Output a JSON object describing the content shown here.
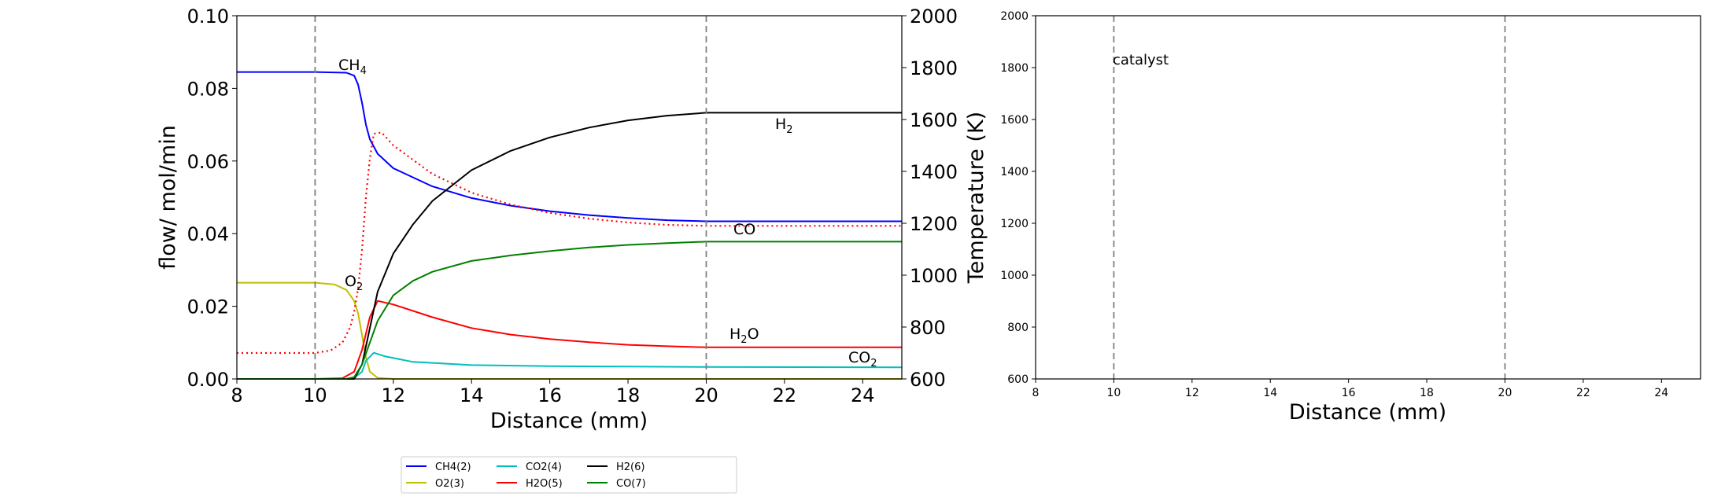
{
  "chart_data": [
    {
      "type": "line",
      "xlabel": "Distance (mm)",
      "ylabel": "flow/ mol/min",
      "y2label": "Temperature (K)",
      "xlim": [
        8,
        25
      ],
      "ylim": [
        0,
        0.1
      ],
      "y2lim": [
        600,
        2000
      ],
      "xticks": [
        8,
        10,
        12,
        14,
        16,
        18,
        20,
        22,
        24
      ],
      "yticks": [
        0.0,
        0.02,
        0.04,
        0.06,
        0.08,
        0.1
      ],
      "y2ticks": [
        600,
        800,
        1000,
        1200,
        1400,
        1600,
        1800,
        2000
      ],
      "catalyst_bounds": [
        10,
        20
      ],
      "legend_location": "below plots, centered",
      "series": [
        {
          "name": "CH4(2)",
          "color": "#0000ff",
          "label": "CH4",
          "points": [
            [
              8,
              0.0845
            ],
            [
              10,
              0.0845
            ],
            [
              10.8,
              0.0843
            ],
            [
              11.0,
              0.0835
            ],
            [
              11.1,
              0.081
            ],
            [
              11.2,
              0.076
            ],
            [
              11.3,
              0.07
            ],
            [
              11.4,
              0.066
            ],
            [
              11.6,
              0.062
            ],
            [
              12,
              0.058
            ],
            [
              13,
              0.053
            ],
            [
              14,
              0.0498
            ],
            [
              15,
              0.0477
            ],
            [
              16,
              0.0462
            ],
            [
              17,
              0.0451
            ],
            [
              18,
              0.0443
            ],
            [
              19,
              0.0437
            ],
            [
              20,
              0.0434
            ],
            [
              25,
              0.0434
            ]
          ]
        },
        {
          "name": "O2(3)",
          "color": "#bfbf00",
          "label": "O2",
          "points": [
            [
              8,
              0.0265
            ],
            [
              10,
              0.0265
            ],
            [
              10.5,
              0.026
            ],
            [
              10.8,
              0.0245
            ],
            [
              11.0,
              0.0215
            ],
            [
              11.1,
              0.018
            ],
            [
              11.2,
              0.012
            ],
            [
              11.3,
              0.006
            ],
            [
              11.4,
              0.002
            ],
            [
              11.6,
              0.0003
            ],
            [
              12,
              0.0
            ],
            [
              25,
              0.0
            ]
          ]
        },
        {
          "name": "CO2(4)",
          "color": "#00bfbf",
          "label": "CO2",
          "points": [
            [
              8,
              0.0
            ],
            [
              10.8,
              0.0
            ],
            [
              11.0,
              0.0003
            ],
            [
              11.2,
              0.002
            ],
            [
              11.3,
              0.005
            ],
            [
              11.5,
              0.0072
            ],
            [
              11.8,
              0.0062
            ],
            [
              12.5,
              0.0047
            ],
            [
              14,
              0.0038
            ],
            [
              16,
              0.0035
            ],
            [
              18,
              0.0034
            ],
            [
              20,
              0.0033
            ],
            [
              25,
              0.0032
            ]
          ]
        },
        {
          "name": "H2O(5)",
          "color": "#ff0000",
          "label": "H2O",
          "points": [
            [
              8,
              0.0
            ],
            [
              10,
              0.0
            ],
            [
              10.7,
              0.0002
            ],
            [
              11.0,
              0.002
            ],
            [
              11.2,
              0.008
            ],
            [
              11.4,
              0.017
            ],
            [
              11.6,
              0.0215
            ],
            [
              12.0,
              0.0205
            ],
            [
              13,
              0.017
            ],
            [
              14,
              0.014
            ],
            [
              15,
              0.0122
            ],
            [
              16,
              0.011
            ],
            [
              17,
              0.0101
            ],
            [
              18,
              0.0094
            ],
            [
              19,
              0.009
            ],
            [
              20,
              0.0087
            ],
            [
              25,
              0.0087
            ]
          ]
        },
        {
          "name": "H2(6)",
          "color": "#000000",
          "label": "H2",
          "points": [
            [
              8,
              0.0
            ],
            [
              11.0,
              0.0
            ],
            [
              11.2,
              0.004
            ],
            [
              11.4,
              0.014
            ],
            [
              11.6,
              0.024
            ],
            [
              12,
              0.0345
            ],
            [
              12.5,
              0.0425
            ],
            [
              13,
              0.049
            ],
            [
              14,
              0.0575
            ],
            [
              15,
              0.0628
            ],
            [
              16,
              0.0665
            ],
            [
              17,
              0.0692
            ],
            [
              18,
              0.0712
            ],
            [
              19,
              0.0725
            ],
            [
              20,
              0.0733
            ],
            [
              25,
              0.0733
            ]
          ]
        },
        {
          "name": "CO(7)",
          "color": "#008000",
          "label": "CO",
          "points": [
            [
              8,
              0.0
            ],
            [
              10.8,
              0.0
            ],
            [
              11.0,
              0.0005
            ],
            [
              11.2,
              0.004
            ],
            [
              11.4,
              0.01
            ],
            [
              11.6,
              0.016
            ],
            [
              12,
              0.023
            ],
            [
              12.5,
              0.027
            ],
            [
              13,
              0.0295
            ],
            [
              14,
              0.0325
            ],
            [
              15,
              0.034
            ],
            [
              16,
              0.0352
            ],
            [
              17,
              0.0362
            ],
            [
              18,
              0.0369
            ],
            [
              19,
              0.0374
            ],
            [
              20,
              0.0378
            ],
            [
              25,
              0.0378
            ]
          ]
        },
        {
          "name": "Temperature",
          "color": "#ff0000",
          "axis": "right",
          "dash": "dotted",
          "points": [
            [
              8,
              700
            ],
            [
              10,
              700
            ],
            [
              10.4,
              710
            ],
            [
              10.7,
              740
            ],
            [
              10.9,
              800
            ],
            [
              11.0,
              860
            ],
            [
              11.1,
              950
            ],
            [
              11.2,
              1100
            ],
            [
              11.3,
              1300
            ],
            [
              11.4,
              1450
            ],
            [
              11.5,
              1545
            ],
            [
              11.7,
              1550
            ],
            [
              12,
              1500
            ],
            [
              13,
              1390
            ],
            [
              14,
              1318
            ],
            [
              15,
              1272
            ],
            [
              16,
              1240
            ],
            [
              17,
              1218
            ],
            [
              18,
              1203
            ],
            [
              19,
              1194
            ],
            [
              20,
              1190
            ],
            [
              25,
              1190
            ]
          ]
        }
      ]
    },
    {
      "type": "line",
      "xlabel": "Distance (mm)",
      "xlim": [
        8,
        25
      ],
      "ylim": [
        600,
        2000
      ],
      "xticks": [
        8,
        10,
        12,
        14,
        16,
        18,
        20,
        22,
        24
      ],
      "yticks": [
        600,
        800,
        1000,
        1200,
        1400,
        1600,
        1800,
        2000
      ],
      "catalyst_bounds": [
        10,
        20
      ],
      "annotation": "catalyst",
      "series": []
    }
  ],
  "legend": [
    {
      "label": "CH4(2)",
      "color": "#0000ff"
    },
    {
      "label": "O2(3)",
      "color": "#bfbf00"
    },
    {
      "label": "CO2(4)",
      "color": "#00bfbf"
    },
    {
      "label": "H2O(5)",
      "color": "#ff0000"
    },
    {
      "label": "H2(6)",
      "color": "#000000"
    },
    {
      "label": "CO(7)",
      "color": "#008000"
    }
  ],
  "labels": {
    "ch4": {
      "base": "CH",
      "sub": "4",
      "color": "#0000ff"
    },
    "o2": {
      "base": "O",
      "sub": "2",
      "color": "#bfbf00"
    },
    "co2": {
      "base": "CO",
      "sub": "2",
      "color": "#00bfbf"
    },
    "h2o_pre": "H",
    "h2o_sub": "2",
    "h2o_post": "O",
    "h2o_color": "#ff0000",
    "h2": {
      "base": "H",
      "sub": "2",
      "color": "#000000"
    },
    "co": {
      "base": "CO",
      "color": "#008000"
    }
  }
}
